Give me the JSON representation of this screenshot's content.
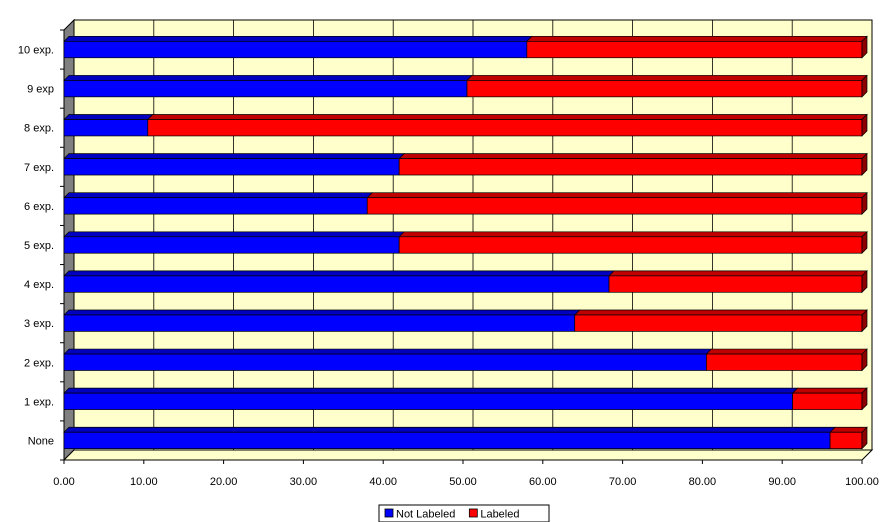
{
  "chart_data": {
    "type": "bar",
    "orientation": "horizontal",
    "stacked": true,
    "percent_stacked": true,
    "three_d": true,
    "categories": [
      "None",
      "1 exp.",
      "2 exp.",
      "3 exp.",
      "4 exp.",
      "5 exp.",
      "6 exp.",
      "7 exp.",
      "8 exp.",
      "9 exp",
      "10 exp."
    ],
    "series": [
      {
        "name": "Not Labeled",
        "color": "#0000ff",
        "values": [
          96.0,
          91.3,
          80.5,
          64.0,
          68.3,
          42.0,
          38.0,
          42.0,
          10.5,
          50.5,
          58.0
        ]
      },
      {
        "name": "Labeled",
        "color": "#ff0000",
        "values": [
          4.0,
          8.7,
          19.5,
          36.0,
          31.7,
          58.0,
          62.0,
          58.0,
          89.5,
          49.5,
          42.0
        ]
      }
    ],
    "xticks": [
      "0.00",
      "10.00",
      "20.00",
      "30.00",
      "40.00",
      "50.00",
      "60.00",
      "70.00",
      "80.00",
      "90.00",
      "100.00"
    ],
    "xlim": [
      0,
      100
    ],
    "grid": true,
    "legend": "bottom",
    "plot_background": "#ffffcc",
    "wall_color": "#808080",
    "title": "",
    "xlabel": "",
    "ylabel": ""
  }
}
